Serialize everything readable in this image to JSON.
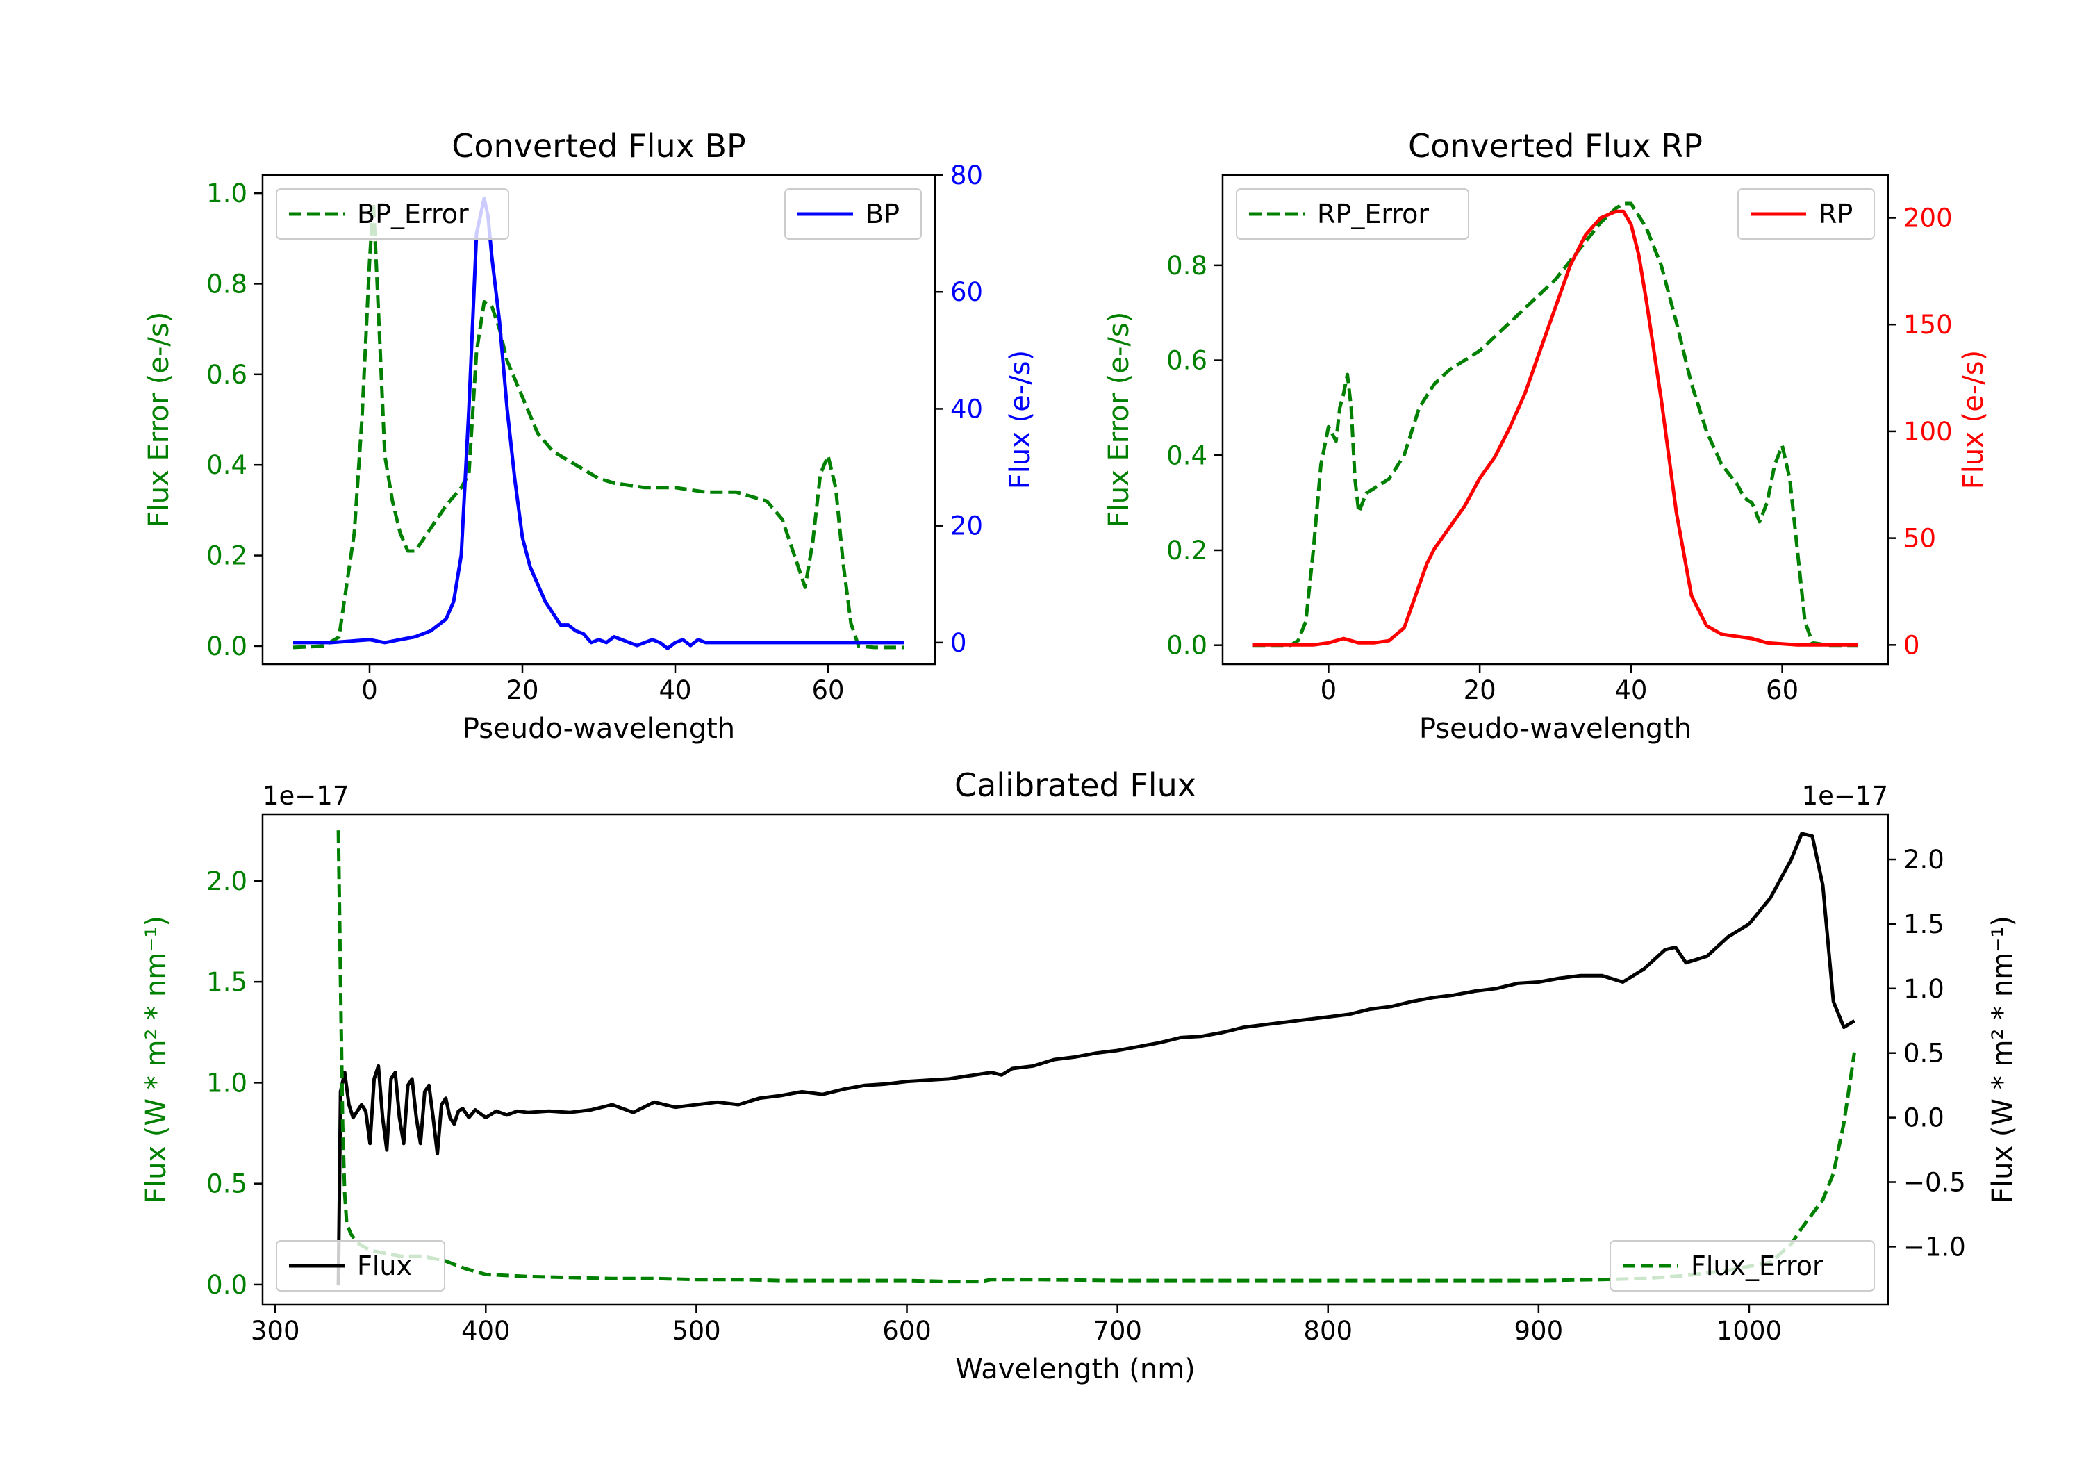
{
  "chart_data": [
    {
      "id": "bp",
      "type": "line",
      "title": "Converted Flux BP",
      "xlabel": "Pseudo-wavelength",
      "ylabel_left": "Flux Error (e-/s)",
      "ylabel_right": "Flux (e-/s)",
      "xlim": [
        -14,
        74
      ],
      "ylim_left": [
        -0.04,
        1.04
      ],
      "ylim_right": [
        -3.7,
        80
      ],
      "xticks": [
        0,
        20,
        40,
        60
      ],
      "yticks_left": [
        0.0,
        0.2,
        0.4,
        0.6,
        0.8,
        1.0
      ],
      "yticks_right": [
        0,
        20,
        40,
        60,
        80
      ],
      "left_axis_color": "#008000",
      "right_axis_color": "#0000ff",
      "legend_left": "BP_Error",
      "legend_right": "BP",
      "series": [
        {
          "name": "BP_Error",
          "axis": "left",
          "color": "#008000",
          "style": "dashed",
          "x": [
            -10,
            -6,
            -4,
            -2,
            -1,
            0,
            0.5,
            1,
            2,
            3,
            4,
            5,
            6,
            8,
            10,
            12,
            13,
            14,
            15,
            16,
            17,
            18,
            20,
            22,
            24,
            26,
            28,
            30,
            32,
            34,
            36,
            40,
            44,
            48,
            50,
            52,
            54,
            56,
            57,
            58,
            59,
            60,
            61,
            62,
            63,
            64,
            66,
            70
          ],
          "y": [
            -0.003,
            0.0,
            0.02,
            0.25,
            0.5,
            0.85,
            0.98,
            0.8,
            0.42,
            0.32,
            0.25,
            0.21,
            0.21,
            0.26,
            0.31,
            0.35,
            0.38,
            0.65,
            0.76,
            0.75,
            0.7,
            0.63,
            0.55,
            0.47,
            0.43,
            0.41,
            0.39,
            0.37,
            0.36,
            0.355,
            0.35,
            0.35,
            0.34,
            0.34,
            0.33,
            0.32,
            0.28,
            0.18,
            0.13,
            0.23,
            0.38,
            0.42,
            0.35,
            0.18,
            0.05,
            0.0,
            -0.003,
            -0.003
          ]
        },
        {
          "name": "BP",
          "axis": "right",
          "color": "#0000ff",
          "style": "solid",
          "x": [
            -10,
            -5,
            0,
            2,
            4,
            6,
            8,
            10,
            11,
            12,
            13,
            14,
            15,
            15.5,
            16,
            17,
            18,
            19,
            20,
            21,
            22,
            23,
            24,
            25,
            26,
            27,
            28,
            29,
            30,
            31,
            32,
            33,
            34,
            35,
            36,
            37,
            38,
            39,
            40,
            41,
            42,
            43,
            44,
            46,
            48,
            50,
            55,
            60,
            65,
            70
          ],
          "y": [
            0,
            0,
            0.5,
            0,
            0.5,
            1,
            2,
            4,
            7,
            15,
            40,
            70,
            76,
            73,
            66,
            55,
            40,
            28,
            18,
            13,
            10,
            7,
            5,
            3,
            3,
            2,
            1.5,
            0,
            0.5,
            0,
            1,
            0.5,
            0,
            -0.5,
            0,
            0.5,
            0,
            -1,
            0,
            0.5,
            -0.5,
            0.5,
            0,
            0,
            0,
            0,
            0,
            0,
            0,
            0
          ]
        }
      ]
    },
    {
      "id": "rp",
      "type": "line",
      "title": "Converted Flux RP",
      "xlabel": "Pseudo-wavelength",
      "ylabel_left": "Flux Error (e-/s)",
      "ylabel_right": "Flux (e-/s)",
      "xlim": [
        -14,
        74
      ],
      "ylim_left": [
        -0.04,
        0.99
      ],
      "ylim_right": [
        -9,
        220
      ],
      "xticks": [
        0,
        20,
        40,
        60
      ],
      "yticks_left": [
        0.0,
        0.2,
        0.4,
        0.6,
        0.8
      ],
      "yticks_right": [
        0,
        50,
        100,
        150,
        200
      ],
      "left_axis_color": "#008000",
      "right_axis_color": "#ff0000",
      "legend_left": "RP_Error",
      "legend_right": "RP",
      "series": [
        {
          "name": "RP_Error",
          "axis": "left",
          "color": "#008000",
          "style": "dashed",
          "x": [
            -10,
            -5,
            -4,
            -3,
            -2,
            -1,
            0,
            1,
            1.5,
            2,
            2.5,
            3,
            3.5,
            4,
            5,
            6,
            8,
            10,
            12,
            14,
            16,
            18,
            20,
            22,
            24,
            26,
            28,
            30,
            32,
            34,
            36,
            38,
            39,
            40,
            42,
            44,
            46,
            48,
            50,
            52,
            54,
            55,
            56,
            57,
            58,
            59,
            60,
            61,
            62,
            63,
            64,
            66,
            70
          ],
          "y": [
            0,
            0,
            0.01,
            0.05,
            0.2,
            0.38,
            0.46,
            0.43,
            0.5,
            0.53,
            0.57,
            0.5,
            0.35,
            0.28,
            0.32,
            0.33,
            0.35,
            0.4,
            0.5,
            0.55,
            0.58,
            0.6,
            0.62,
            0.65,
            0.68,
            0.71,
            0.74,
            0.77,
            0.81,
            0.85,
            0.89,
            0.92,
            0.93,
            0.93,
            0.88,
            0.8,
            0.68,
            0.55,
            0.45,
            0.38,
            0.34,
            0.31,
            0.3,
            0.26,
            0.3,
            0.38,
            0.42,
            0.35,
            0.2,
            0.05,
            0.005,
            0,
            0
          ]
        },
        {
          "name": "RP",
          "axis": "right",
          "color": "#ff0000",
          "style": "solid",
          "x": [
            -10,
            -5,
            -2,
            0,
            2,
            4,
            6,
            8,
            10,
            11,
            12,
            13,
            14,
            16,
            18,
            20,
            22,
            24,
            26,
            28,
            30,
            32,
            34,
            36,
            38,
            39,
            40,
            41,
            42,
            44,
            46,
            48,
            50,
            52,
            54,
            56,
            57,
            58,
            60,
            62,
            64,
            66,
            70
          ],
          "y": [
            0,
            0,
            0,
            1,
            3,
            1,
            1,
            2,
            8,
            18,
            28,
            38,
            45,
            55,
            65,
            78,
            88,
            102,
            118,
            138,
            158,
            178,
            192,
            200,
            203,
            203,
            197,
            183,
            162,
            115,
            62,
            23,
            9,
            5,
            4,
            3,
            2,
            1,
            0.5,
            0,
            0,
            0,
            0
          ]
        }
      ]
    },
    {
      "id": "calibrated",
      "type": "line",
      "title": "Calibrated Flux",
      "xlabel": "Wavelength (nm)",
      "ylabel_left": "Flux (W * m² * nm⁻¹)",
      "ylabel_right": "Flux (W * m² * nm⁻¹)",
      "offset_left": "1e−17",
      "offset_right": "1e−17",
      "xlim": [
        294,
        1066
      ],
      "ylim_left": [
        -0.1,
        2.33
      ],
      "ylim_right": [
        -1.45,
        2.35
      ],
      "xticks": [
        300,
        400,
        500,
        600,
        700,
        800,
        900,
        1000
      ],
      "yticks_left": [
        0.0,
        0.5,
        1.0,
        1.5,
        2.0
      ],
      "yticks_left_labels": [
        "0.0",
        "0.5",
        "1.0",
        "1.5",
        "2.0"
      ],
      "yticks_right": [
        -1.0,
        -0.5,
        0.0,
        0.5,
        1.0,
        1.5,
        2.0
      ],
      "yticks_right_labels": [
        "−1.0",
        "−0.5",
        "0.0",
        "0.5",
        "1.0",
        "1.5",
        "2.0"
      ],
      "left_axis_color": "#008000",
      "right_axis_color": "#000000",
      "legend_left": "Flux",
      "legend_right": "Flux_Error",
      "series": [
        {
          "name": "Flux",
          "axis": "right",
          "color": "#000000",
          "style": "solid",
          "x": [
            330,
            331,
            333,
            335,
            337,
            339,
            341,
            343,
            345,
            347,
            349,
            351,
            353,
            355,
            357,
            359,
            361,
            363,
            365,
            367,
            369,
            371,
            373,
            375,
            377,
            379,
            381,
            383,
            385,
            387,
            389,
            392,
            395,
            400,
            405,
            410,
            415,
            420,
            430,
            440,
            450,
            460,
            470,
            480,
            490,
            500,
            510,
            520,
            530,
            540,
            550,
            560,
            570,
            580,
            590,
            600,
            620,
            640,
            645,
            650,
            660,
            670,
            680,
            690,
            700,
            710,
            720,
            730,
            740,
            750,
            760,
            770,
            780,
            790,
            800,
            810,
            820,
            830,
            840,
            850,
            860,
            870,
            880,
            890,
            900,
            910,
            920,
            930,
            940,
            950,
            960,
            965,
            970,
            980,
            990,
            1000,
            1010,
            1020,
            1025,
            1030,
            1035,
            1040,
            1045,
            1050
          ],
          "y": [
            -1.3,
            0.2,
            0.35,
            0.1,
            0.0,
            0.05,
            0.1,
            0.05,
            -0.2,
            0.3,
            0.4,
            0.0,
            -0.25,
            0.3,
            0.35,
            0.0,
            -0.2,
            0.25,
            0.3,
            0.0,
            -0.2,
            0.2,
            0.25,
            0.0,
            -0.28,
            0.1,
            0.15,
            0.0,
            -0.05,
            0.05,
            0.07,
            0.0,
            0.06,
            0.0,
            0.05,
            0.02,
            0.05,
            0.04,
            0.05,
            0.04,
            0.06,
            0.1,
            0.04,
            0.12,
            0.08,
            0.1,
            0.12,
            0.1,
            0.15,
            0.17,
            0.2,
            0.18,
            0.22,
            0.25,
            0.26,
            0.28,
            0.3,
            0.35,
            0.33,
            0.38,
            0.4,
            0.45,
            0.47,
            0.5,
            0.52,
            0.55,
            0.58,
            0.62,
            0.63,
            0.66,
            0.7,
            0.72,
            0.74,
            0.76,
            0.78,
            0.8,
            0.84,
            0.86,
            0.9,
            0.93,
            0.95,
            0.98,
            1.0,
            1.04,
            1.05,
            1.08,
            1.1,
            1.1,
            1.05,
            1.15,
            1.3,
            1.32,
            1.2,
            1.25,
            1.4,
            1.5,
            1.7,
            2.0,
            2.2,
            2.18,
            1.8,
            0.9,
            0.7,
            0.75
          ]
        },
        {
          "name": "Flux_Error",
          "axis": "left",
          "color": "#008000",
          "style": "dashed",
          "x": [
            330,
            331,
            332,
            333,
            334,
            336,
            338,
            340,
            345,
            350,
            360,
            370,
            380,
            390,
            400,
            410,
            420,
            440,
            460,
            480,
            500,
            520,
            540,
            560,
            580,
            600,
            620,
            635,
            640,
            660,
            700,
            750,
            800,
            850,
            900,
            930,
            950,
            970,
            990,
            1000,
            1010,
            1020,
            1025,
            1030,
            1035,
            1040,
            1045,
            1050
          ],
          "y": [
            2.25,
            1.5,
            0.8,
            0.45,
            0.3,
            0.25,
            0.22,
            0.2,
            0.17,
            0.16,
            0.14,
            0.14,
            0.12,
            0.08,
            0.05,
            0.045,
            0.04,
            0.035,
            0.03,
            0.03,
            0.025,
            0.025,
            0.02,
            0.02,
            0.02,
            0.02,
            0.015,
            0.015,
            0.025,
            0.025,
            0.02,
            0.02,
            0.02,
            0.02,
            0.02,
            0.025,
            0.03,
            0.045,
            0.07,
            0.09,
            0.11,
            0.2,
            0.28,
            0.35,
            0.42,
            0.55,
            0.8,
            1.15
          ]
        }
      ]
    }
  ]
}
